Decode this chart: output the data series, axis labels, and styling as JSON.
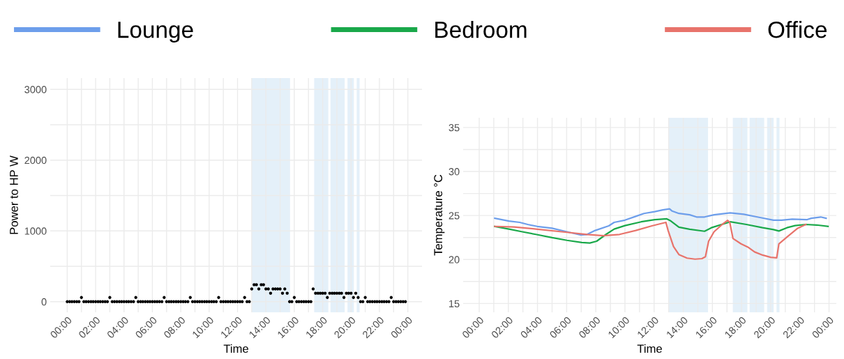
{
  "chart_data": [
    {
      "type": "scatter",
      "xlabel": "Time",
      "ylabel": "Power to HP W",
      "marker": "circle",
      "grid": true,
      "x": [
        0,
        0.17,
        0.33,
        0.5,
        0.67,
        0.83,
        1,
        1.17,
        1.33,
        1.5,
        1.67,
        1.83,
        2,
        2.17,
        2.33,
        2.5,
        2.67,
        2.83,
        3,
        3.17,
        3.33,
        3.5,
        3.67,
        3.83,
        4,
        4.17,
        4.33,
        4.5,
        4.67,
        4.83,
        5,
        5.17,
        5.33,
        5.5,
        5.67,
        5.83,
        6,
        6.17,
        6.33,
        6.5,
        6.67,
        6.83,
        7,
        7.17,
        7.33,
        7.5,
        7.67,
        7.83,
        8,
        8.17,
        8.33,
        8.5,
        8.67,
        8.83,
        9,
        9.17,
        9.33,
        9.5,
        9.67,
        9.83,
        10,
        10.17,
        10.33,
        10.5,
        10.67,
        10.83,
        11,
        11.17,
        11.33,
        11.5,
        11.67,
        11.83,
        12,
        12.17,
        12.33,
        12.5,
        12.67,
        12.83,
        13,
        13.17,
        13.33,
        13.5,
        13.67,
        13.83,
        14,
        14.17,
        14.33,
        14.5,
        14.67,
        14.83,
        15,
        15.17,
        15.33,
        15.5,
        15.67,
        15.83,
        16,
        16.17,
        16.33,
        16.5,
        16.67,
        16.83,
        17,
        17.17,
        17.33,
        17.5,
        17.67,
        17.83,
        18,
        18.17,
        18.33,
        18.5,
        18.67,
        18.83,
        19,
        19.17,
        19.33,
        19.5,
        19.67,
        19.83,
        20,
        20.17,
        20.33,
        20.5,
        20.67,
        20.83,
        21,
        21.17,
        21.33,
        21.5,
        21.67,
        21.83,
        22,
        22.17,
        22.33,
        22.5,
        22.67,
        22.83,
        23,
        23.17,
        23.33,
        23.5,
        23.67,
        23.83
      ],
      "series": [
        {
          "color": "#000000",
          "values": [
            0,
            0,
            0,
            0,
            0,
            0,
            60,
            0,
            0,
            0,
            0,
            0,
            0,
            0,
            0,
            0,
            0,
            0,
            60,
            0,
            0,
            0,
            0,
            0,
            0,
            0,
            0,
            0,
            0,
            60,
            0,
            0,
            0,
            0,
            0,
            0,
            0,
            0,
            0,
            0,
            0,
            60,
            0,
            0,
            0,
            0,
            0,
            0,
            0,
            0,
            0,
            0,
            60,
            0,
            0,
            0,
            0,
            0,
            0,
            0,
            0,
            0,
            0,
            0,
            60,
            0,
            0,
            0,
            0,
            0,
            0,
            0,
            0,
            0,
            0,
            60,
            0,
            0,
            180,
            240,
            240,
            180,
            240,
            240,
            180,
            180,
            120,
            180,
            180,
            180,
            180,
            120,
            180,
            120,
            0,
            0,
            60,
            0,
            0,
            0,
            0,
            0,
            0,
            0,
            180,
            120,
            120,
            120,
            120,
            120,
            60,
            120,
            120,
            120,
            120,
            120,
            120,
            60,
            120,
            120,
            120,
            60,
            120,
            60,
            0,
            0,
            60,
            0,
            0,
            0,
            0,
            0,
            0,
            0,
            0,
            0,
            0,
            60,
            0,
            0,
            0,
            0,
            0,
            0
          ]
        }
      ],
      "xlim": [
        -1.2,
        25
      ],
      "xticks": [
        {
          "value": 0,
          "label": "00:00"
        },
        {
          "value": 1,
          "label": null
        },
        {
          "value": 2,
          "label": "02:00"
        },
        {
          "value": 3,
          "label": null
        },
        {
          "value": 4,
          "label": "04:00"
        },
        {
          "value": 5,
          "label": null
        },
        {
          "value": 6,
          "label": "06:00"
        },
        {
          "value": 7,
          "label": null
        },
        {
          "value": 8,
          "label": "08:00"
        },
        {
          "value": 9,
          "label": null
        },
        {
          "value": 10,
          "label": "10:00"
        },
        {
          "value": 11,
          "label": null
        },
        {
          "value": 12,
          "label": "12:00"
        },
        {
          "value": 13,
          "label": null
        },
        {
          "value": 14,
          "label": "14:00"
        },
        {
          "value": 15,
          "label": null
        },
        {
          "value": 16,
          "label": "16:00"
        },
        {
          "value": 17,
          "label": null
        },
        {
          "value": 18,
          "label": "18:00"
        },
        {
          "value": 19,
          "label": null
        },
        {
          "value": 20,
          "label": "20:00"
        },
        {
          "value": 21,
          "label": null
        },
        {
          "value": 22,
          "label": "22:00"
        },
        {
          "value": 23,
          "label": null
        },
        {
          "value": 24,
          "label": "00:00"
        }
      ],
      "ylim": [
        -150,
        3160
      ],
      "yticks": [
        0,
        {
          "value": 500,
          "label": null
        },
        1000,
        {
          "value": 1500,
          "label": null
        },
        2000,
        {
          "value": 2500,
          "label": null
        },
        3000
      ],
      "bands": [
        {
          "axis": "x",
          "from": 13.0,
          "to": 15.7,
          "color": "#d9eaf6"
        },
        {
          "axis": "x",
          "from": 17.4,
          "to": 18.4,
          "color": "#d9eaf6"
        },
        {
          "axis": "x",
          "from": 18.55,
          "to": 19.55,
          "color": "#d9eaf6"
        },
        {
          "axis": "x",
          "from": 19.75,
          "to": 20.2,
          "color": "#d9eaf6"
        },
        {
          "axis": "x",
          "from": 20.4,
          "to": 20.6,
          "color": "#d9eaf6"
        }
      ]
    },
    {
      "type": "line",
      "xlabel": "Time",
      "ylabel": "Temperature °C",
      "grid": true,
      "legend": "top",
      "marker": "none",
      "line_style": "solid",
      "series": [
        {
          "name": "Lounge",
          "color": "#6d9eeb",
          "x": [
            1.07,
            2.04,
            2.78,
            3.33,
            3.98,
            5.0,
            6.02,
            6.94,
            7.4,
            7.96,
            8.89,
            9.26,
            10.0,
            10.74,
            11.3,
            12.04,
            12.59,
            13.06,
            13.24,
            13.7,
            14.44,
            14.91,
            15.46,
            16.11,
            17.22,
            18.15,
            19.26,
            20.19,
            20.74,
            21.48,
            22.5,
            22.78,
            23.43,
            23.8
          ],
          "values": [
            24.68,
            24.37,
            24.22,
            23.98,
            23.76,
            23.55,
            23.15,
            22.79,
            22.85,
            23.3,
            23.82,
            24.22,
            24.47,
            24.9,
            25.23,
            25.44,
            25.63,
            25.75,
            25.5,
            25.23,
            25.08,
            24.83,
            24.83,
            25.08,
            25.3,
            25.14,
            24.77,
            24.47,
            24.47,
            24.59,
            24.53,
            24.68,
            24.83,
            24.68
          ]
        },
        {
          "name": "Bedroom",
          "color": "#1aa84a",
          "x": [
            1.07,
            2.04,
            2.96,
            3.89,
            5.0,
            6.02,
            7.04,
            7.59,
            8.06,
            8.7,
            9.26,
            10.0,
            11.11,
            12.04,
            12.87,
            13.15,
            13.7,
            14.44,
            15.46,
            15.93,
            17.22,
            18.33,
            19.44,
            20.19,
            20.56,
            21.11,
            21.67,
            22.41,
            23.15,
            23.93
          ],
          "values": [
            23.76,
            23.46,
            23.15,
            22.85,
            22.48,
            22.18,
            21.93,
            21.87,
            22.08,
            22.85,
            23.46,
            23.85,
            24.28,
            24.53,
            24.62,
            24.37,
            23.67,
            23.43,
            23.21,
            23.61,
            24.28,
            23.98,
            23.61,
            23.4,
            23.24,
            23.61,
            23.85,
            23.98,
            23.92,
            23.76
          ]
        },
        {
          "name": "Office",
          "color": "#e8736b",
          "x": [
            1.07,
            2.41,
            3.89,
            6.02,
            7.4,
            8.52,
            9.63,
            10.74,
            11.85,
            12.81,
            12.96,
            13.33,
            13.7,
            14.26,
            14.81,
            15.28,
            15.52,
            15.74,
            16.11,
            16.67,
            17.04,
            17.19,
            17.41,
            17.96,
            18.43,
            18.89,
            19.44,
            20.0,
            20.41,
            20.56,
            21.11,
            21.85,
            22.41
          ],
          "values": [
            23.76,
            23.7,
            23.46,
            23.09,
            22.85,
            22.7,
            22.85,
            23.3,
            23.82,
            24.22,
            23.3,
            21.47,
            20.56,
            20.16,
            20.04,
            20.1,
            20.31,
            22.08,
            23.15,
            23.98,
            24.44,
            24.22,
            22.39,
            21.78,
            21.41,
            20.86,
            20.5,
            20.25,
            20.19,
            21.78,
            22.54,
            23.55,
            23.98
          ]
        }
      ],
      "xlim": [
        -1.1,
        24.5
      ],
      "xticks": [
        {
          "value": 0,
          "label": "00:00"
        },
        {
          "value": 1,
          "label": null
        },
        {
          "value": 2,
          "label": "02:00"
        },
        {
          "value": 3,
          "label": null
        },
        {
          "value": 4,
          "label": "04:00"
        },
        {
          "value": 5,
          "label": null
        },
        {
          "value": 6,
          "label": "06:00"
        },
        {
          "value": 7,
          "label": null
        },
        {
          "value": 8,
          "label": "08:00"
        },
        {
          "value": 9,
          "label": null
        },
        {
          "value": 10,
          "label": "10:00"
        },
        {
          "value": 11,
          "label": null
        },
        {
          "value": 12,
          "label": "12:00"
        },
        {
          "value": 13,
          "label": null
        },
        {
          "value": 14,
          "label": "14:00"
        },
        {
          "value": 15,
          "label": null
        },
        {
          "value": 16,
          "label": "16:00"
        },
        {
          "value": 17,
          "label": null
        },
        {
          "value": 18,
          "label": "18:00"
        },
        {
          "value": 19,
          "label": null
        },
        {
          "value": 20,
          "label": "20:00"
        },
        {
          "value": 21,
          "label": null
        },
        {
          "value": 22,
          "label": "22:00"
        },
        {
          "value": 23,
          "label": null
        },
        {
          "value": 24,
          "label": "00:00"
        }
      ],
      "ylim": [
        14,
        36.1
      ],
      "yticks": [
        15,
        {
          "value": 17.5,
          "label": null
        },
        20,
        {
          "value": 22.5,
          "label": null
        },
        25,
        {
          "value": 27.5,
          "label": null
        },
        30,
        {
          "value": 32.5,
          "label": null
        },
        35
      ],
      "bands": [
        {
          "axis": "x",
          "from": 13.0,
          "to": 15.7,
          "color": "#d9eaf6"
        },
        {
          "axis": "x",
          "from": 17.4,
          "to": 18.4,
          "color": "#d9eaf6"
        },
        {
          "axis": "x",
          "from": 18.55,
          "to": 19.55,
          "color": "#d9eaf6"
        },
        {
          "axis": "x",
          "from": 19.75,
          "to": 20.2,
          "color": "#d9eaf6"
        },
        {
          "axis": "x",
          "from": 20.4,
          "to": 20.6,
          "color": "#d9eaf6"
        }
      ]
    }
  ]
}
